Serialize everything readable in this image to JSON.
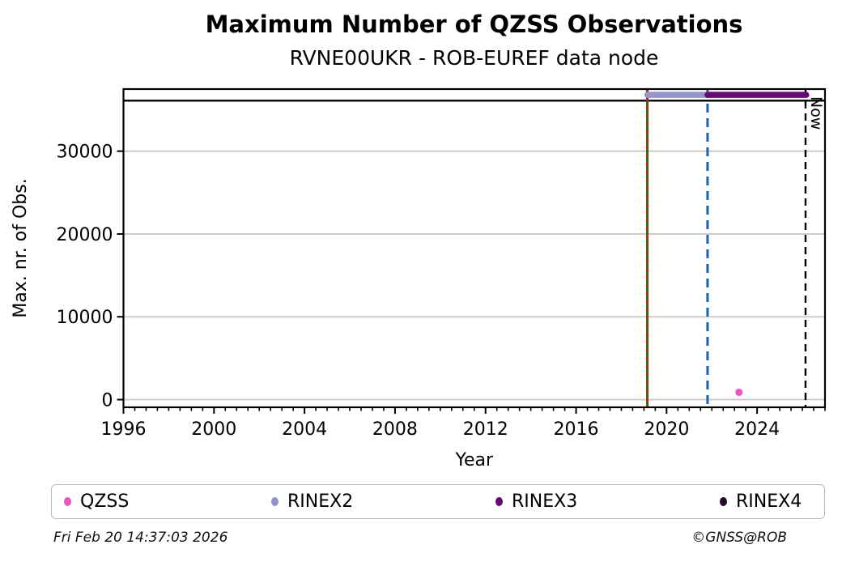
{
  "header": {
    "title": "Maximum Number of QZSS Observations",
    "subtitle": "RVNE00UKR - ROB-EUREF data node"
  },
  "chart_data": {
    "type": "scatter",
    "title": "Maximum Number of QZSS Observations",
    "subtitle": "RVNE00UKR - ROB-EUREF data node",
    "xlabel": "Year",
    "ylabel": "Max. nr. of Obs.",
    "xlim": [
      1996,
      2027
    ],
    "ylim": [
      -930,
      37500
    ],
    "x_ticks": [
      1996,
      2000,
      2004,
      2008,
      2012,
      2016,
      2020,
      2024
    ],
    "x_minor_tick_step": 0.5,
    "y_ticks": [
      0,
      10000,
      20000,
      30000
    ],
    "grid": "horizontal-only",
    "grid_color": "#c8c8c8",
    "series": [
      {
        "name": "QZSS",
        "type": "scatter",
        "color": "#f24fc6",
        "points": [
          [
            2023.2,
            880
          ]
        ]
      }
    ],
    "availability_bars": [
      {
        "name": "RINEX2",
        "color": "#9394cc",
        "start": 2019.15,
        "end": 2021.81,
        "y": 36800
      },
      {
        "name": "RINEX3",
        "color": "#660b74",
        "start": 2021.81,
        "end": 2026.17,
        "y": 36800
      }
    ],
    "hlines": [
      {
        "y": 36100,
        "color": "#000000",
        "style": "solid"
      }
    ],
    "vlines": [
      {
        "x": 2019.15,
        "color": "#0b7a0b",
        "style": "solid",
        "label": ""
      },
      {
        "x": 2019.15,
        "color": "#dc1414",
        "style": "dashed",
        "label": ""
      },
      {
        "x": 2021.81,
        "color": "#1565b0",
        "style": "dashed",
        "label": ""
      },
      {
        "x": 2026.14,
        "color": "#000000",
        "style": "dashed",
        "label": "Now"
      }
    ]
  },
  "legend": {
    "items": [
      {
        "label": "QZSS",
        "color": "#f24fc6"
      },
      {
        "label": "RINEX2",
        "color": "#9394cc"
      },
      {
        "label": "RINEX3",
        "color": "#660b74"
      },
      {
        "label": "RINEX4",
        "color": "#260b2e"
      }
    ]
  },
  "footer": {
    "timestamp": "Fri Feb 20 14:37:03 2026",
    "credit": "©GNSS@ROB"
  }
}
